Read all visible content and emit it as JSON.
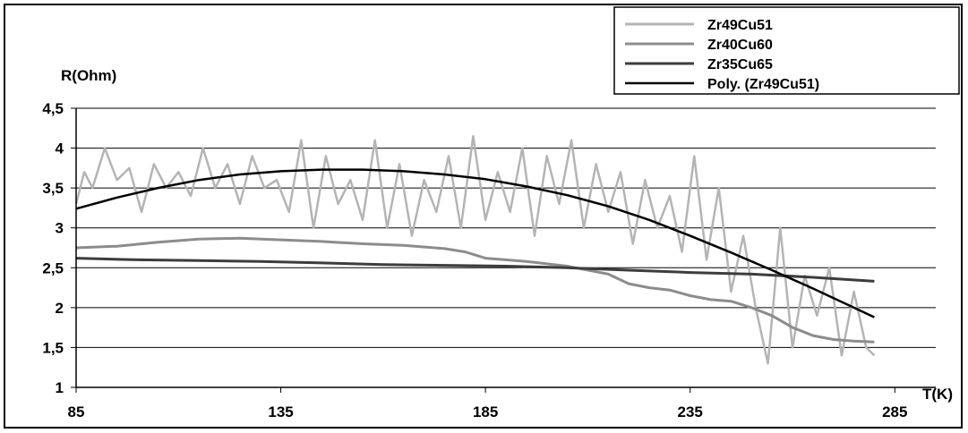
{
  "chart_data": {
    "type": "line",
    "title": "",
    "xlabel": "T(K)",
    "ylabel": "R(Ohm)",
    "xlim": [
      85,
      295
    ],
    "ylim": [
      1,
      4.5
    ],
    "x_ticks": [
      "85",
      "135",
      "185",
      "235",
      "285"
    ],
    "x_tick_values": [
      85,
      135,
      185,
      235,
      285
    ],
    "y_ticks": [
      "1",
      "1,5",
      "2",
      "2,5",
      "3",
      "3,5",
      "4",
      "4,5"
    ],
    "y_tick_values": [
      1,
      1.5,
      2,
      2.5,
      3,
      3.5,
      4,
      4.5
    ],
    "grid": "horizontal",
    "legend_position": "top-right",
    "series": [
      {
        "name": "Zr49Cu51",
        "color": "#b4b4b4",
        "x": [
          85,
          87,
          89,
          92,
          95,
          98,
          101,
          104,
          107,
          110,
          113,
          116,
          119,
          122,
          125,
          128,
          131,
          134,
          137,
          140,
          143,
          146,
          149,
          152,
          155,
          158,
          161,
          164,
          167,
          170,
          173,
          176,
          179,
          182,
          185,
          188,
          191,
          194,
          197,
          200,
          203,
          206,
          209,
          212,
          215,
          218,
          221,
          224,
          227,
          230,
          233,
          236,
          239,
          242,
          245,
          248,
          251,
          254,
          257,
          260,
          263,
          266,
          269,
          272,
          275,
          278,
          280
        ],
        "values": [
          3.3,
          3.7,
          3.5,
          4.0,
          3.6,
          3.75,
          3.2,
          3.8,
          3.5,
          3.7,
          3.4,
          4.0,
          3.5,
          3.8,
          3.3,
          3.9,
          3.5,
          3.6,
          3.2,
          4.1,
          3.0,
          3.9,
          3.3,
          3.6,
          3.1,
          4.1,
          3.0,
          3.8,
          2.9,
          3.6,
          3.2,
          3.9,
          3.0,
          4.15,
          3.1,
          3.7,
          3.2,
          4.0,
          2.9,
          3.9,
          3.3,
          4.1,
          3.0,
          3.8,
          3.2,
          3.7,
          2.8,
          3.6,
          3.0,
          3.4,
          2.7,
          3.9,
          2.6,
          3.5,
          2.2,
          2.9,
          2.0,
          1.3,
          3.0,
          1.5,
          2.4,
          1.9,
          2.5,
          1.4,
          2.2,
          1.5,
          1.4
        ]
      },
      {
        "name": "Zr40Cu60",
        "color": "#8c8c8c",
        "x": [
          85,
          95,
          105,
          115,
          125,
          135,
          145,
          155,
          165,
          175,
          180,
          185,
          195,
          205,
          215,
          220,
          225,
          230,
          235,
          240,
          245,
          250,
          255,
          260,
          265,
          270,
          275,
          280
        ],
        "values": [
          2.75,
          2.77,
          2.82,
          2.86,
          2.87,
          2.85,
          2.83,
          2.8,
          2.78,
          2.74,
          2.7,
          2.62,
          2.58,
          2.52,
          2.42,
          2.3,
          2.25,
          2.22,
          2.15,
          2.1,
          2.08,
          2.0,
          1.9,
          1.75,
          1.65,
          1.6,
          1.58,
          1.57
        ]
      },
      {
        "name": "Zr35Cu65",
        "color": "#3c3c3c",
        "x": [
          85,
          100,
          115,
          130,
          145,
          160,
          175,
          190,
          205,
          220,
          235,
          250,
          265,
          280
        ],
        "values": [
          2.62,
          2.6,
          2.59,
          2.58,
          2.56,
          2.54,
          2.53,
          2.52,
          2.5,
          2.47,
          2.44,
          2.42,
          2.38,
          2.33
        ]
      },
      {
        "name": "Poly. (Zr49Cu51)",
        "color": "#000000",
        "x": [
          85,
          95,
          105,
          115,
          125,
          135,
          145,
          155,
          165,
          175,
          185,
          195,
          205,
          215,
          225,
          235,
          245,
          255,
          265,
          275,
          280
        ],
        "values": [
          3.24,
          3.38,
          3.5,
          3.6,
          3.67,
          3.71,
          3.73,
          3.73,
          3.71,
          3.67,
          3.61,
          3.52,
          3.41,
          3.27,
          3.1,
          2.9,
          2.69,
          2.47,
          2.24,
          2.0,
          1.88
        ]
      }
    ]
  }
}
